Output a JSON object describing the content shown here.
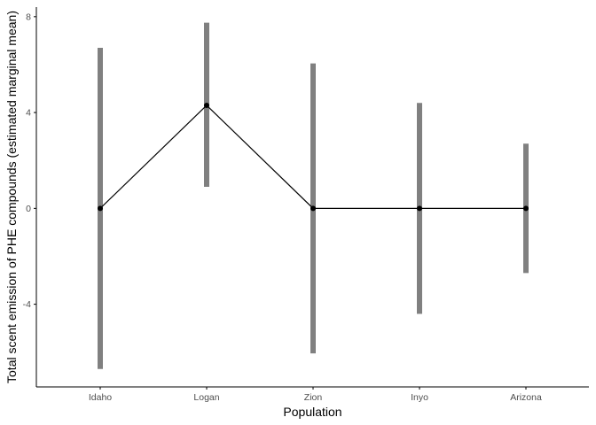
{
  "chart_data": {
    "type": "line",
    "xlabel": "Population",
    "ylabel": "Total scent emission of PHE compounds (estimated marginal mean)",
    "categories": [
      "Idaho",
      "Logan",
      "Zion",
      "Inyo",
      "Arizona"
    ],
    "ylim": [
      -7.45,
      8.4
    ],
    "yticks": [
      8,
      4,
      0,
      -4
    ],
    "ytick_labels": [
      "8",
      "4",
      "0",
      "-4"
    ],
    "grid": false,
    "series": [
      {
        "values": [
          0,
          4.3,
          0,
          0,
          0
        ],
        "lower": [
          -6.7,
          0.9,
          -6.05,
          -4.4,
          -2.7
        ],
        "upper": [
          6.7,
          7.75,
          6.05,
          4.4,
          2.7
        ]
      }
    ],
    "colors": {
      "errorbar": "#808080",
      "line": "#000000",
      "point": "#000000",
      "axis": "#000000"
    }
  }
}
